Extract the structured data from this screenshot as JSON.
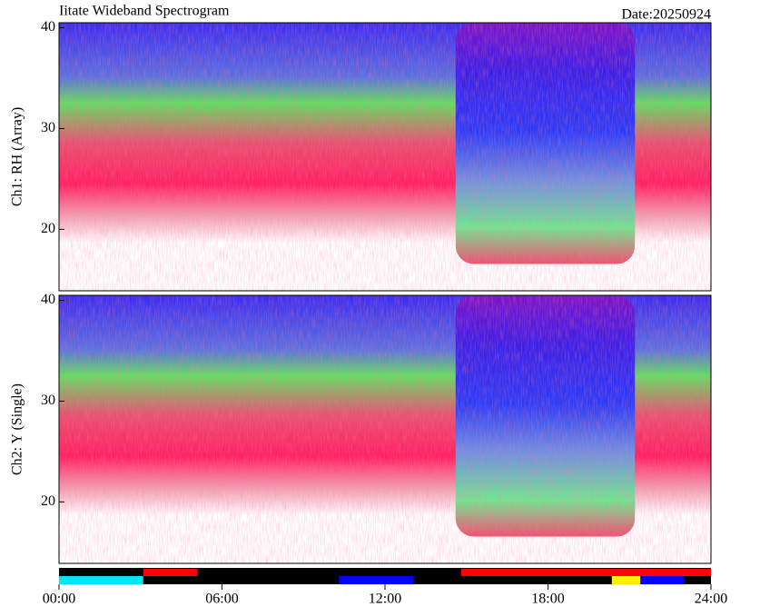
{
  "chart_data": {
    "type": "spectrogram",
    "title": "Iitate Wideband Spectrogram",
    "date_label": "Date:20250924",
    "xlim": [
      0,
      24
    ],
    "xticks": [
      {
        "value": 0,
        "label": "00:00"
      },
      {
        "value": 6,
        "label": "06:00"
      },
      {
        "value": 12,
        "label": "12:00"
      },
      {
        "value": 18,
        "label": "18:00"
      },
      {
        "value": 24,
        "label": "24:00"
      }
    ],
    "panels": [
      {
        "ylabel": "Ch1: RH (Array)",
        "ylim": [
          13.9,
          40.5
        ],
        "yticks": [
          20,
          30,
          40
        ]
      },
      {
        "ylabel": "Ch2: Y (Single)",
        "ylim": [
          13.9,
          40.5
        ],
        "yticks": [
          20,
          30,
          40
        ]
      }
    ],
    "status_upper": [
      {
        "start": 3.1,
        "end": 5.1,
        "color": "#ff0000"
      },
      {
        "start": 14.8,
        "end": 24,
        "color": "#ff0000"
      }
    ],
    "status_lower": [
      {
        "start": 0,
        "end": 3.1,
        "color": "#00e5ff"
      },
      {
        "start": 10.3,
        "end": 13.05,
        "color": "#0000ff"
      },
      {
        "start": 20.35,
        "end": 21.4,
        "color": "#ffee00"
      },
      {
        "start": 21.4,
        "end": 23,
        "color": "#0000ff"
      }
    ]
  }
}
